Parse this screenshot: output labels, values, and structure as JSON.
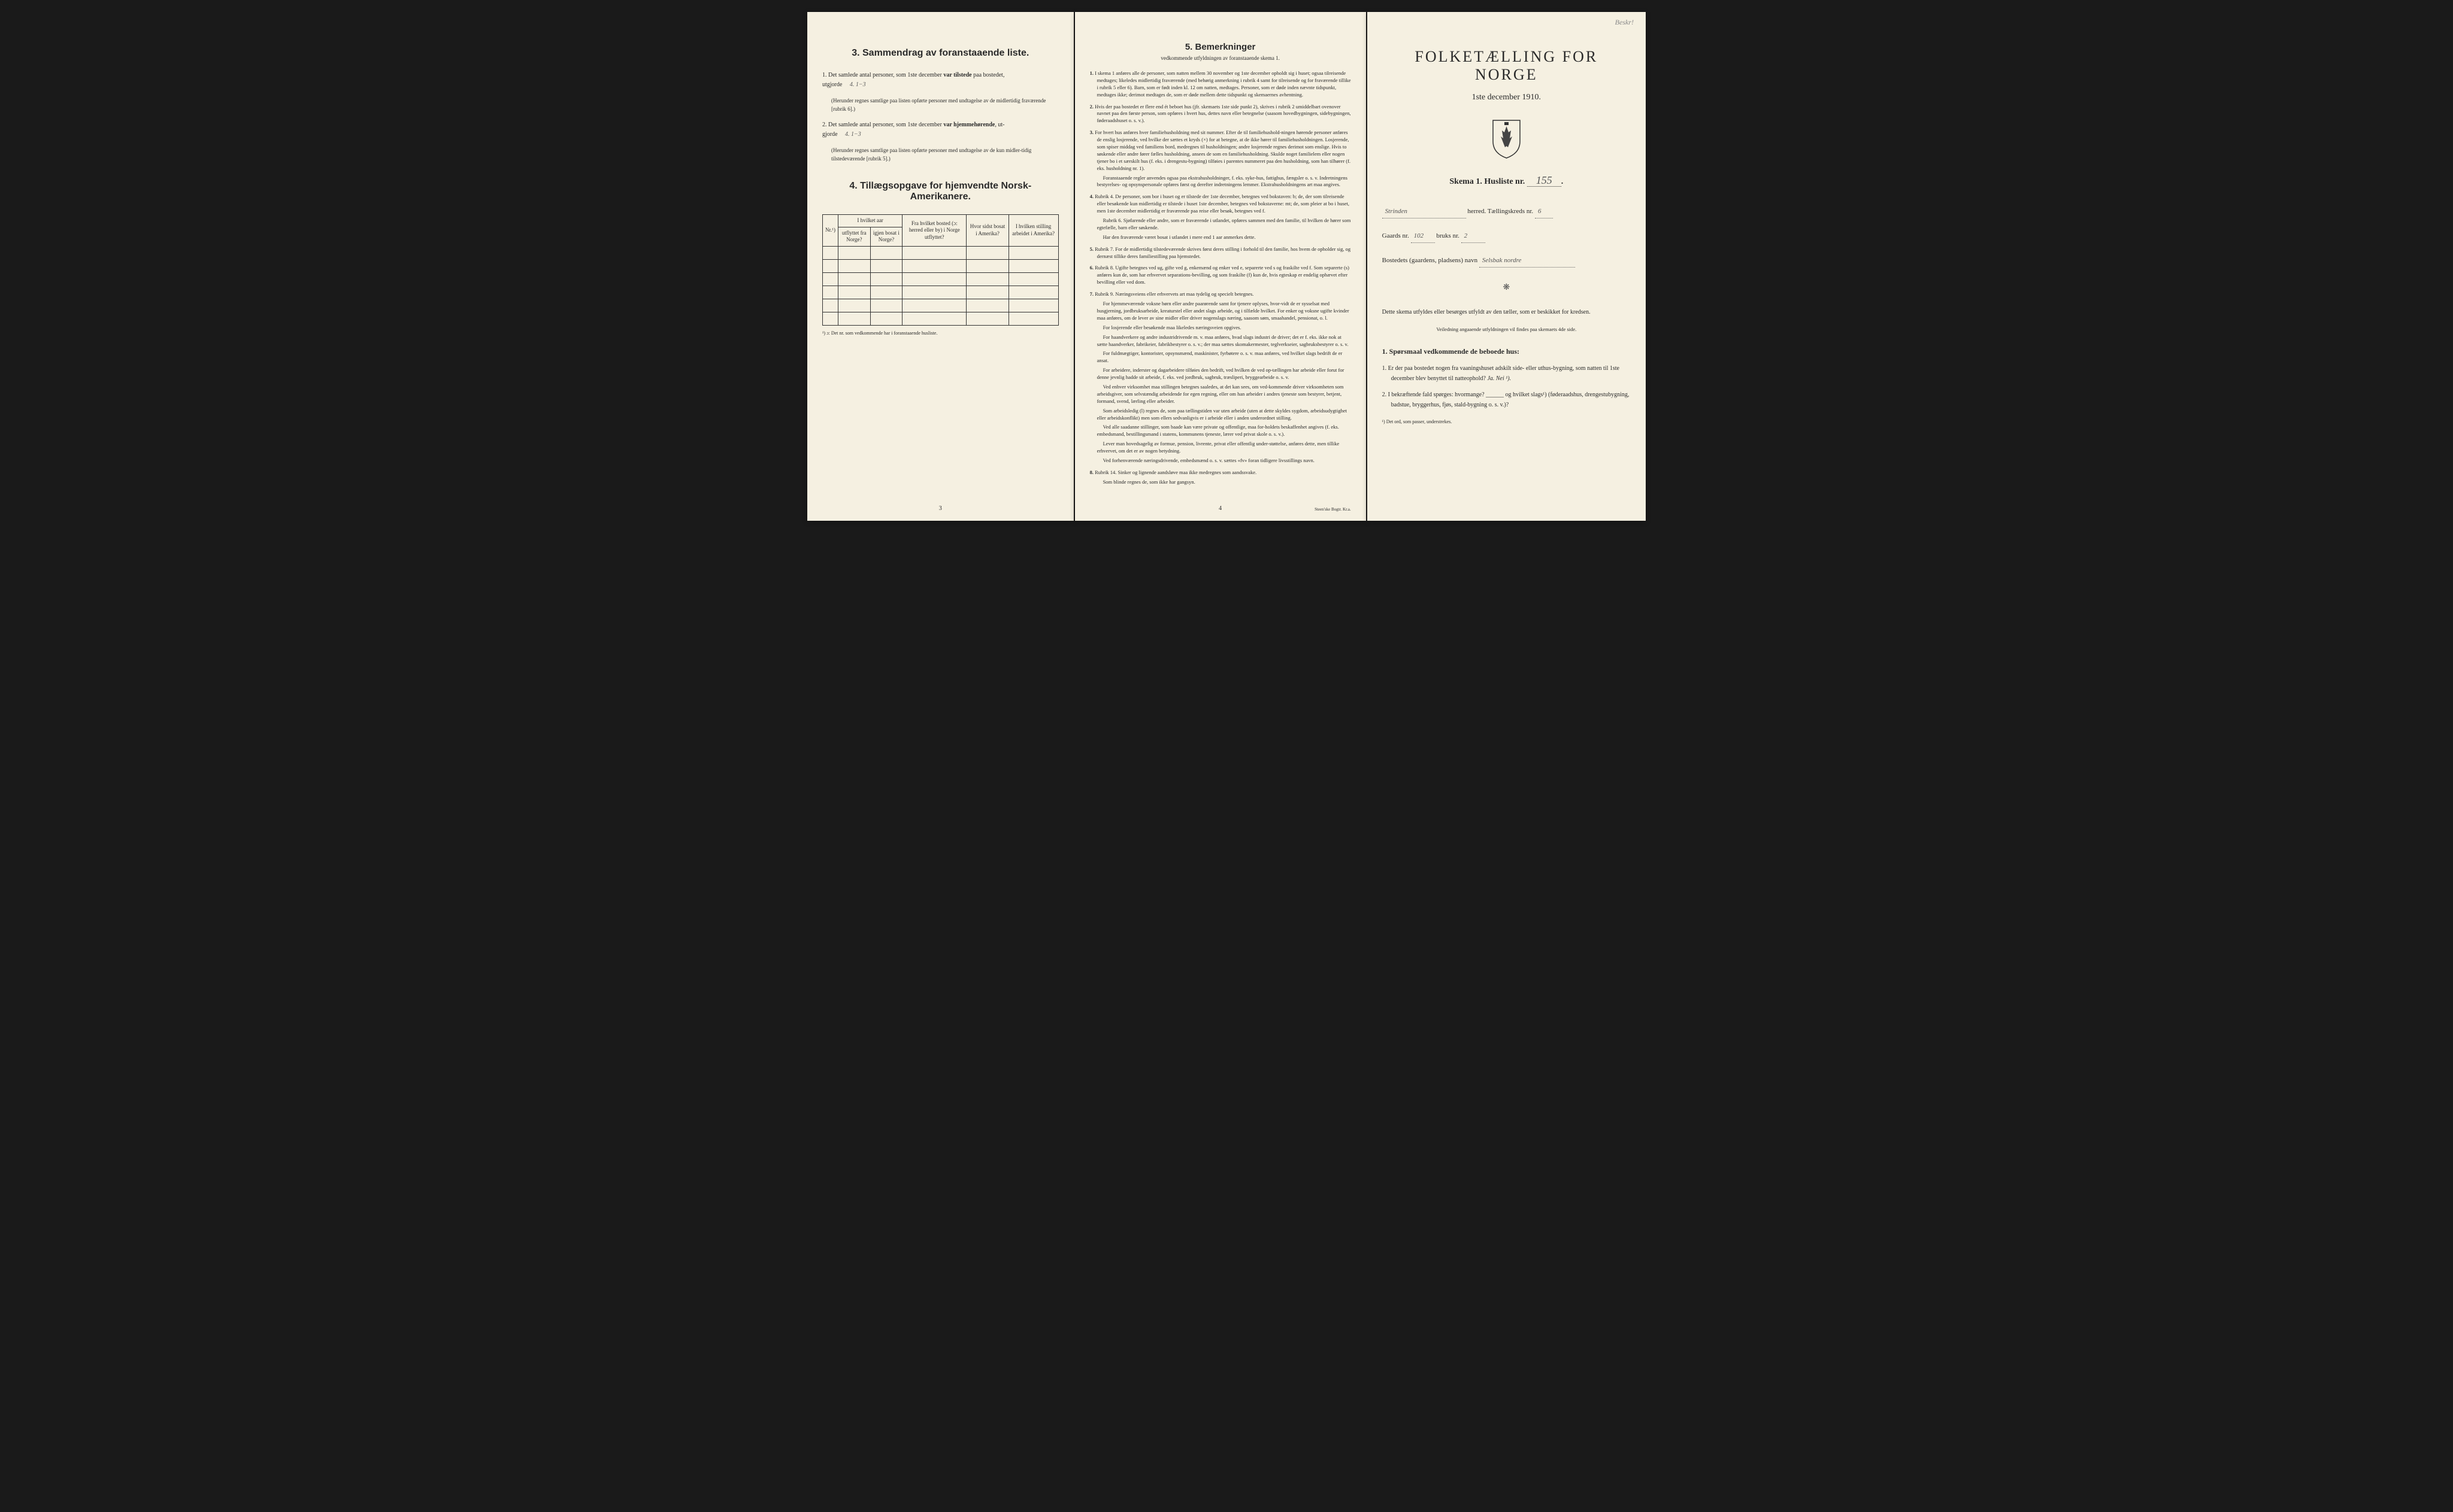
{
  "document": {
    "background_color": "#f5f0e1",
    "text_color": "#2a2a2a",
    "border_color": "#333333"
  },
  "page_left": {
    "section3_title": "3.   Sammendrag av foranstaaende liste.",
    "item1_prefix": "1.  Det samlede antal personer, som 1ste december",
    "item1_bold": "var tilstede",
    "item1_suffix": "paa bostedet,",
    "item1_line2": "utgjorde",
    "item1_handwritten": "4.    1−3",
    "item1_paren": "(Herunder regnes samtlige paa listen opførte personer med undtagelse av de midlertidig fraværende [rubrik 6].)",
    "item2_prefix": "2.  Det samlede antal personer, som 1ste december",
    "item2_bold": "var hjemmehørende",
    "item2_suffix": ", ut-",
    "item2_line2": "gjorde",
    "item2_handwritten": "4.    1−3",
    "item2_paren": "(Herunder regnes samtlige paa listen opførte personer med undtagelse av de kun midler-tidig tilstedeværende [rubrik 5].)",
    "section4_title": "4.   Tillægsopgave for hjemvendte Norsk-Amerikanere.",
    "table": {
      "col1_header": "Nr.¹)",
      "col2_group": "I hvilket aar",
      "col2a": "utflyttet fra Norge?",
      "col2b": "igjen bosat i Norge?",
      "col3": "Fra hvilket bosted (ɔ: herred eller by) i Norge utflyttet?",
      "col4": "Hvor sidst bosat i Amerika?",
      "col5": "I hvilken stilling arbeidet i Amerika?",
      "row_count": 6
    },
    "table_footnote": "¹) ɔ: Det nr. som vedkommende har i foranstaaende husliste.",
    "page_number": "3"
  },
  "page_center": {
    "section5_title": "5.   Bemerkninger",
    "section5_subtitle": "vedkommende utfyldningen av foranstaaende skema 1.",
    "remarks": [
      {
        "num": "1.",
        "text": "I skema 1 anføres alle de personer, som natten mellem 30 november og 1ste december opholdt sig i huset; ogsaa tilreisende medtages; likeledes midlertidig fraværende (med behørig anmerkning i rubrik 4 samt for tilreisende og for fraværende tillike i rubrik 5 eller 6). Barn, som er født inden kl. 12 om natten, medtages. Personer, som er døde inden nævnte tidspunkt, medtages ikke; derimot medtages de, som er døde mellem dette tidspunkt og skemaernes avhentning."
      },
      {
        "num": "2.",
        "text": "Hvis der paa bostedet er flere end ét beboet hus (jfr. skemaets 1ste side punkt 2), skrives i rubrik 2 umiddelbart ovenover navnet paa den første person, som opføres i hvert hus, dettes navn eller betegnelse (saasom hovedbygningen, sidebygningen, føderaadshuset o. s. v.)."
      },
      {
        "num": "3.",
        "text": "For hvert hus anføres hver familiehusholdning med sit nummer. Efter de til familiehushold-ningen hørende personer anføres de enslig losjerende, ved hvilke der sættes et kryds (×) for at betegne, at de ikke hører til familiehusholdningen. Losjerende, som spiser middag ved familiens bord, medregnes til husholdningen; andre losjerende regnes derimot som enslige. Hvis to søskende eller andre fører fælles husholdning, ansees de som en familiehusholdning. Skulde noget familielem eller nogen tjener bo i et særskilt hus (f. eks. i drengestu-bygning) tilføies i parentes nummeret paa den husholdning, som han tilhører (f. eks. husholdning nr. 1).",
        "sub": "Foranstaaende regler anvendes ogsaa paa ekstrahusholdninger, f. eks. syke-hus, fattighus, fængsler o. s. v. Indretningens bestyrelses- og opsynspersonale opføres først og derefter indretningens lemmer. Ekstrahusholdningens art maa angives."
      },
      {
        "num": "4.",
        "text": "Rubrik 4. De personer, som bor i huset og er tilstede der 1ste december, betegnes ved bokstaven: b; de, der som tilreisende eller besøkende kun midlertidig er tilstede i huset 1ste december, betegnes ved bokstaverne: mt; de, som pleier at bo i huset, men 1ste december midlertidig er fraværende paa reise eller besøk, betegnes ved f.",
        "sub": "Rubrik 6. Sjøfarende eller andre, som er fraværende i utlandet, opføres sammen med den familie, til hvilken de hører som egtefælle, barn eller søskende.",
        "sub2": "Har den fraværende været bosat i utlandet i mere end 1 aar anmerkes dette."
      },
      {
        "num": "5.",
        "text": "Rubrik 7. For de midlertidig tilstedeværende skrives først deres stilling i forhold til den familie, hos hvem de opholder sig, og dernæst tillike deres familiestilling paa hjemstedet."
      },
      {
        "num": "6.",
        "text": "Rubrik 8. Ugifte betegnes ved ug, gifte ved g, enkemænd og enker ved e, separerte ved s og fraskilte ved f. Som separerte (s) anføres kun de, som har erhvervet separations-bevilling, og som fraskilte (f) kun de, hvis egteskap er endelig ophævet efter bevilling eller ved dom."
      },
      {
        "num": "7.",
        "text": "Rubrik 9. Næringsveiens eller erhvervets art maa tydelig og specielt betegnes.",
        "sub": "For hjemmeværende voksne børn eller andre paarørende samt for tjenere oplyses, hvor-vidt de er sysselsat med husgjerning, jordbruksarbeide, kreaturstel eller andet slags arbeide, og i tilfælde hvilket. For enker og voksne ugifte kvinder maa anføres, om de lever av sine midler eller driver nogenslags næring, saasom søm, smaahandel, pensionat, o. l.",
        "sub2": "For losjerende eller besøkende maa likeledes næringsveien opgives.",
        "sub3": "For haandverkere og andre industridrivende m. v. maa anføres, hvad slags industri de driver; det er f. eks. ikke nok at sætte haandverker, fabrikeier, fabrikbestyrer o. s. v.; der maa sættes skomakermester, teglverkseier, sagbruksbestyrer o. s. v.",
        "sub4": "For fuldmægtiger, kontorister, opsynsmænd, maskinister, fyrbøtere o. s. v. maa anføres, ved hvilket slags bedrift de er ansat.",
        "sub5": "For arbeidere, inderster og dagarbeidere tilføies den bedrift, ved hvilken de ved op-tællingen har arbeide eller forut for denne jevnlig hadde sit arbeide, f. eks. ved jordbruk, sagbruk, træsliperi, bryggearbeide o. s. v.",
        "sub6": "Ved enhver virksomhet maa stillingen betegnes saaledes, at det kan sees, om ved-kommende driver virksomheten som arbeidsgiver, som selvstændig arbeidende for egen regning, eller om han arbeider i andres tjeneste som bestyrer, betjent, formand, svend, lærling eller arbeider.",
        "sub7": "Som arbeidsledig (l) regnes de, som paa tællingstiden var uten arbeide (uten at dette skyldes sygdom, arbeidsudygtighet eller arbeidskonflikt) men som ellers sedvanligvis er i arbeide eller i anden underordnet stilling.",
        "sub8": "Ved alle saadanne stillinger, som baade kan være private og offentlige, maa for-holdets beskaffenhet angives (f. eks. embedsmand, bestillingsmand i statens, kommunens tjeneste, lærer ved privat skole o. s. v.).",
        "sub9": "Lever man hovedsagelig av formue, pension, livrente, privat eller offentlig under-støttelse, anføres dette, men tillike erhvervet, om det er av nogen betydning.",
        "sub10": "Ved forhenværende næringsdrivende, embedsmænd o. s. v. sættes «fv» foran tidligere livsstillings navn."
      },
      {
        "num": "8.",
        "text": "Rubrik 14. Sinker og lignende aandsløve maa ikke medregnes som aandssvake.",
        "sub": "Som blinde regnes de, som ikke har gangsyn."
      }
    ],
    "page_number": "4",
    "printer": "Steen'ske Bogtr.  Kr.a."
  },
  "page_right": {
    "corner_note": "Beskr!",
    "main_title": "FOLKETÆLLING FOR NORGE",
    "date_line": "1ste december 1910.",
    "skema_label": "Skema  1.   Husliste nr.",
    "skema_number": "155",
    "line1_handwritten": "Strinden",
    "line1_suffix": "herred.  Tællingskreds nr.",
    "line1_number": "6",
    "line2_prefix": "Gaards nr.",
    "line2_num1": "102",
    "line2_mid": "bruks nr.",
    "line2_num2": "2",
    "line3_prefix": "Bostedets (gaardens, pladsens) navn",
    "line3_handwritten": "Selsbak nordre",
    "instruction": "Dette skema utfyldes eller besørges utfyldt av den tæller, som er beskikket for kredsen.",
    "instruction_small": "Veiledning angaaende utfyldningen vil findes paa skemaets 4de side.",
    "q_section_title": "1. Spørsmaal vedkommende de beboede hus:",
    "q1_num": "1.",
    "q1_text": "Er der paa bostedet nogen fra vaaningshuset adskilt side- eller uthus-bygning, som natten til 1ste december blev benyttet til natteophold?",
    "q1_answers": "Ja.   Nei ¹).",
    "q2_num": "2.",
    "q2_text": "I bekræftende fald spørges: hvormange? ______ og hvilket slags¹) (føderaadshus, drengestubygning, badstue, bryggerhus, fjøs, stald-bygning o. s. v.)?",
    "footnote": "¹) Det ord, som passer, understrekes."
  }
}
